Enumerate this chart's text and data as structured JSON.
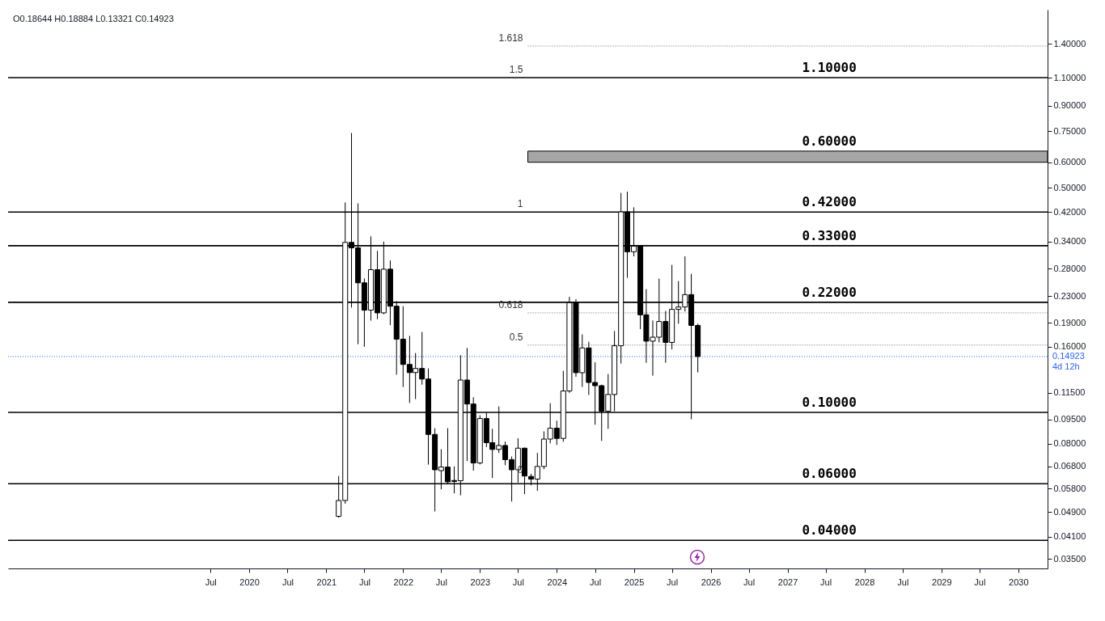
{
  "chart_data": {
    "type": "candlestick",
    "color": "#000000",
    "log": true,
    "x": [
      "2021-03",
      "2021-04",
      "2021-05",
      "2021-06",
      "2021-07",
      "2021-08",
      "2021-09",
      "2021-10",
      "2021-11",
      "2021-12",
      "2022-01",
      "2022-02",
      "2022-03",
      "2022-04",
      "2022-05",
      "2022-06",
      "2022-07",
      "2022-08",
      "2022-09",
      "2022-10",
      "2022-11",
      "2022-12",
      "2023-01",
      "2023-02",
      "2023-03",
      "2023-04",
      "2023-05",
      "2023-06",
      "2023-07",
      "2023-08",
      "2023-09",
      "2023-10",
      "2023-11",
      "2023-12",
      "2024-01",
      "2024-02",
      "2024-03",
      "2024-04",
      "2024-05",
      "2024-06",
      "2024-07",
      "2024-08",
      "2024-09",
      "2024-10",
      "2024-11",
      "2024-12",
      "2025-01",
      "2025-02",
      "2025-03",
      "2025-04",
      "2025-05",
      "2025-06",
      "2025-07",
      "2025-08",
      "2025-09",
      "2025-10",
      "2025-11"
    ],
    "ohlc": [
      [
        0.0475,
        0.0634,
        0.047,
        0.0532
      ],
      [
        0.0532,
        0.45,
        0.052,
        0.338
      ],
      [
        0.338,
        0.74,
        0.212,
        0.325
      ],
      [
        0.325,
        0.447,
        0.163,
        0.253
      ],
      [
        0.253,
        0.261,
        0.16,
        0.208
      ],
      [
        0.208,
        0.353,
        0.193,
        0.278
      ],
      [
        0.278,
        0.318,
        0.195,
        0.204
      ],
      [
        0.204,
        0.34,
        0.202,
        0.279
      ],
      [
        0.279,
        0.297,
        0.187,
        0.214
      ],
      [
        0.214,
        0.222,
        0.131,
        0.169
      ],
      [
        0.169,
        0.214,
        0.12,
        0.141
      ],
      [
        0.141,
        0.173,
        0.107,
        0.133
      ],
      [
        0.133,
        0.153,
        0.11,
        0.137
      ],
      [
        0.137,
        0.178,
        0.122,
        0.127
      ],
      [
        0.127,
        0.137,
        0.0688,
        0.0854
      ],
      [
        0.0854,
        0.0893,
        0.0492,
        0.0663
      ],
      [
        0.0659,
        0.0768,
        0.0576,
        0.0676
      ],
      [
        0.0676,
        0.0893,
        0.0599,
        0.0608
      ],
      [
        0.0614,
        0.0679,
        0.056,
        0.061
      ],
      [
        0.0613,
        0.1506,
        0.0552,
        0.1261
      ],
      [
        0.1261,
        0.1587,
        0.0706,
        0.1062
      ],
      [
        0.1062,
        0.1115,
        0.0659,
        0.0696
      ],
      [
        0.0696,
        0.098,
        0.0689,
        0.0957
      ],
      [
        0.0957,
        0.0999,
        0.078,
        0.0805
      ],
      [
        0.0805,
        0.0889,
        0.0625,
        0.0767
      ],
      [
        0.0767,
        0.1044,
        0.0748,
        0.0789
      ],
      [
        0.0789,
        0.0812,
        0.0685,
        0.0713
      ],
      [
        0.0713,
        0.0729,
        0.0528,
        0.0663
      ],
      [
        0.0663,
        0.0831,
        0.0605,
        0.0774
      ],
      [
        0.0774,
        0.0777,
        0.0557,
        0.0634
      ],
      [
        0.0632,
        0.0644,
        0.0593,
        0.062
      ],
      [
        0.062,
        0.0748,
        0.057,
        0.0679
      ],
      [
        0.0679,
        0.0873,
        0.0666,
        0.0826
      ],
      [
        0.0826,
        0.1068,
        0.0802,
        0.0893
      ],
      [
        0.0893,
        0.0943,
        0.0792,
        0.083
      ],
      [
        0.083,
        0.1347,
        0.081,
        0.1166
      ],
      [
        0.1166,
        0.2289,
        0.115,
        0.2195
      ],
      [
        0.2195,
        0.225,
        0.1291,
        0.1329
      ],
      [
        0.1329,
        0.1749,
        0.12,
        0.1587
      ],
      [
        0.1587,
        0.1659,
        0.1133,
        0.1239
      ],
      [
        0.1239,
        0.1432,
        0.0916,
        0.1211
      ],
      [
        0.1211,
        0.122,
        0.0815,
        0.1008
      ],
      [
        0.1008,
        0.1316,
        0.0889,
        0.1137
      ],
      [
        0.1137,
        0.1792,
        0.1008,
        0.1612
      ],
      [
        0.1612,
        0.4816,
        0.1419,
        0.4206
      ],
      [
        0.4206,
        0.4861,
        0.2622,
        0.3161
      ],
      [
        0.3161,
        0.4347,
        0.3059,
        0.3291
      ],
      [
        0.3291,
        0.3317,
        0.1816,
        0.2012
      ],
      [
        0.2012,
        0.2418,
        0.1427,
        0.1666
      ],
      [
        0.1666,
        0.1932,
        0.1301,
        0.1714
      ],
      [
        0.1714,
        0.2607,
        0.1651,
        0.1918
      ],
      [
        0.1918,
        0.2068,
        0.1427,
        0.1651
      ],
      [
        0.1651,
        0.2876,
        0.1571,
        0.2092
      ],
      [
        0.2092,
        0.2562,
        0.1888,
        0.2128
      ],
      [
        0.2128,
        0.3059,
        0.2059,
        0.2325
      ],
      [
        0.2325,
        0.2699,
        0.0952,
        0.18644
      ],
      [
        0.18644,
        0.18884,
        0.13321,
        0.14923
      ]
    ],
    "xlim": [
      "2016-12",
      "2030-05"
    ],
    "xticks": [
      {
        "value": "2019-07",
        "label": "Jul"
      },
      "2020",
      {
        "value": "2020-07",
        "label": "Jul"
      },
      "2021",
      {
        "value": "2021-07",
        "label": "Jul"
      },
      "2022",
      {
        "value": "2022-07",
        "label": "Jul"
      },
      "2023",
      {
        "value": "2023-07",
        "label": "Jul"
      },
      "2024",
      {
        "value": "2024-07",
        "label": "Jul"
      },
      "2025",
      {
        "value": "2025-07",
        "label": "Jul"
      },
      "2026",
      {
        "value": "2026-07",
        "label": "Jul"
      },
      "2027",
      {
        "value": "2027-07",
        "label": "Jul"
      },
      "2028",
      {
        "value": "2028-07",
        "label": "Jul"
      },
      "2029",
      {
        "value": "2029-07",
        "label": "Jul"
      },
      "2030"
    ],
    "ylim": [
      0.0327,
      1.79
    ],
    "yticks": [
      {
        "value": 1.4,
        "label": "1.40000"
      },
      {
        "value": 1.1,
        "label": "1.10000"
      },
      {
        "value": 0.9,
        "label": "0.90000"
      },
      {
        "value": 0.75,
        "label": "0.75000"
      },
      {
        "value": 0.6,
        "label": "0.60000"
      },
      {
        "value": 0.5,
        "label": "0.50000"
      },
      {
        "value": 0.42,
        "label": "0.42000"
      },
      {
        "value": 0.34,
        "label": "0.34000"
      },
      {
        "value": 0.28,
        "label": "0.28000"
      },
      {
        "value": 0.23,
        "label": "0.23000"
      },
      {
        "value": 0.19,
        "label": "0.19000"
      },
      {
        "value": 0.16,
        "label": "0.16000"
      },
      {
        "value": 0.115,
        "label": "0.11500"
      },
      {
        "value": 0.095,
        "label": "0.09500"
      },
      {
        "value": 0.08,
        "label": "0.08000"
      },
      {
        "value": 0.068,
        "label": "0.06800"
      },
      {
        "value": 0.058,
        "label": "0.05800"
      },
      {
        "value": 0.049,
        "label": "0.04900"
      },
      {
        "value": 0.041,
        "label": "0.04100"
      },
      {
        "value": 0.035,
        "label": "0.03500"
      }
    ],
    "ref_lines": [
      {
        "axis": "y",
        "value": 1.1,
        "label": "1.10000"
      },
      {
        "axis": "y",
        "value": 0.42,
        "label": "0.42000"
      },
      {
        "axis": "y",
        "value": 0.33,
        "label": "0.33000"
      },
      {
        "axis": "y",
        "value": 0.22,
        "label": "0.22000"
      },
      {
        "axis": "y",
        "value": 0.1,
        "label": "0.10000"
      },
      {
        "axis": "y",
        "value": 0.06,
        "label": "0.06000"
      },
      {
        "axis": "y",
        "value": 0.04,
        "label": "0.04000"
      },
      {
        "axis": "y",
        "value": 1.38,
        "line_style": "dotted"
      },
      {
        "axis": "y",
        "value": 0.204,
        "line_style": "dotted"
      },
      {
        "axis": "y",
        "value": 0.162,
        "line_style": "dotted"
      },
      {
        "axis": "y",
        "value": 0.14923,
        "label": "0.14923",
        "line_style": "dotted",
        "color": "#2962ff"
      }
    ],
    "bands": [
      {
        "axis": "y",
        "from": 0.6,
        "to": 0.65,
        "label": "0.60000",
        "color": "#a6a6a6"
      }
    ],
    "annotations": [
      "O0.18644 H0.18884 L0.13321 C0.14923",
      "4d 12h",
      "1.618",
      "0.618",
      "0.5",
      {
        "text": "1.5",
        "y": 1.1
      },
      {
        "text": "1",
        "y": 0.42
      },
      {
        "text": "0",
        "y": 0.0625
      }
    ]
  }
}
